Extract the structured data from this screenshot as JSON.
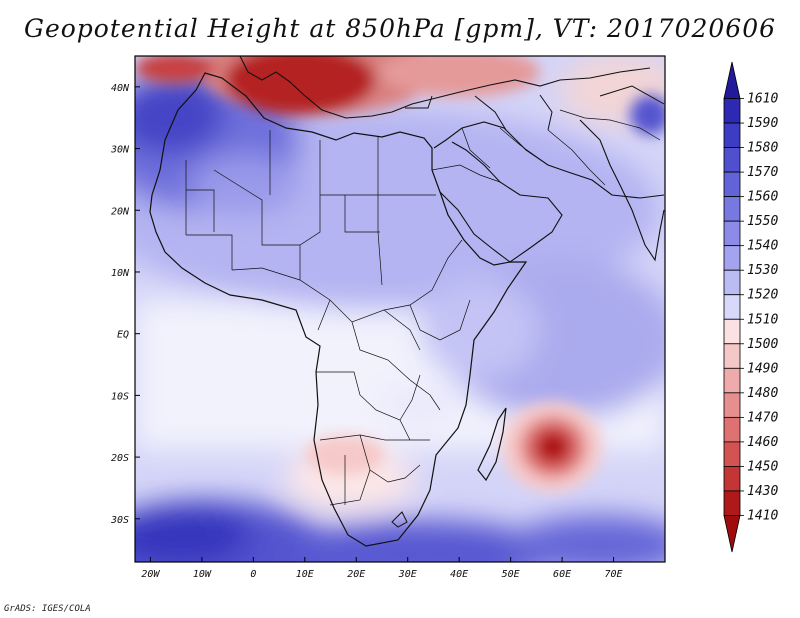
{
  "header": {
    "title": "Geopotential Height at 850hPa [gpm], VT: 2017020606"
  },
  "footer": {
    "credit": "GrADS: IGES/COLA"
  },
  "map": {
    "region": "Africa, Middle East and western Indian Ocean",
    "projection": "lat-lon",
    "lon_range": [
      -23,
      80
    ],
    "lat_range": [
      -37,
      45
    ]
  },
  "chart_data": {
    "type": "heatmap",
    "title": "Geopotential Height at 850hPa [gpm], VT: 2017020606",
    "variable": "Geopotential Height",
    "level": "850hPa",
    "units": "gpm",
    "valid_time": "2017020606",
    "x_ticks": [
      "20W",
      "10W",
      "0",
      "10E",
      "20E",
      "30E",
      "40E",
      "50E",
      "60E",
      "70E"
    ],
    "x_tick_lons": [
      -20,
      -10,
      0,
      10,
      20,
      30,
      40,
      50,
      60,
      70
    ],
    "y_ticks": [
      "40N",
      "30N",
      "20N",
      "10N",
      "EQ",
      "10S",
      "20S",
      "30S"
    ],
    "y_tick_lats": [
      40,
      30,
      20,
      10,
      0,
      -10,
      -20,
      -30
    ],
    "colorbar": {
      "labels": [
        "1610",
        "1590",
        "1580",
        "1570",
        "1560",
        "1550",
        "1540",
        "1530",
        "1520",
        "1510",
        "1500",
        "1490",
        "1480",
        "1470",
        "1460",
        "1450",
        "1430",
        "1410"
      ],
      "colors": [
        "#221a9a",
        "#2d29b2",
        "#3c3cc4",
        "#5050cf",
        "#6363d9",
        "#7878e1",
        "#8c8ce8",
        "#a3a3ef",
        "#bcbcf5",
        "#d8d8fb",
        "#fbe1e1",
        "#f6c7c7",
        "#efabab",
        "#e78f8f",
        "#de7272",
        "#d35353",
        "#c43535",
        "#b01919",
        "#a00c0c"
      ]
    },
    "features": [
      {
        "name": "high over northwest Africa",
        "lon": -17,
        "lat": 31,
        "value": 1600
      },
      {
        "name": "low over Mediterranean",
        "lon": 14,
        "lat": 42,
        "value": 1430
      },
      {
        "name": "tropical low east of Madagascar",
        "lon": 57.5,
        "lat": -18.5,
        "value": 1420
      },
      {
        "name": "high over South Atlantic",
        "lon": -15,
        "lat": -31,
        "value": 1575
      },
      {
        "name": "high off southeast Africa",
        "lon": 36,
        "lat": -31,
        "value": 1565
      }
    ]
  }
}
